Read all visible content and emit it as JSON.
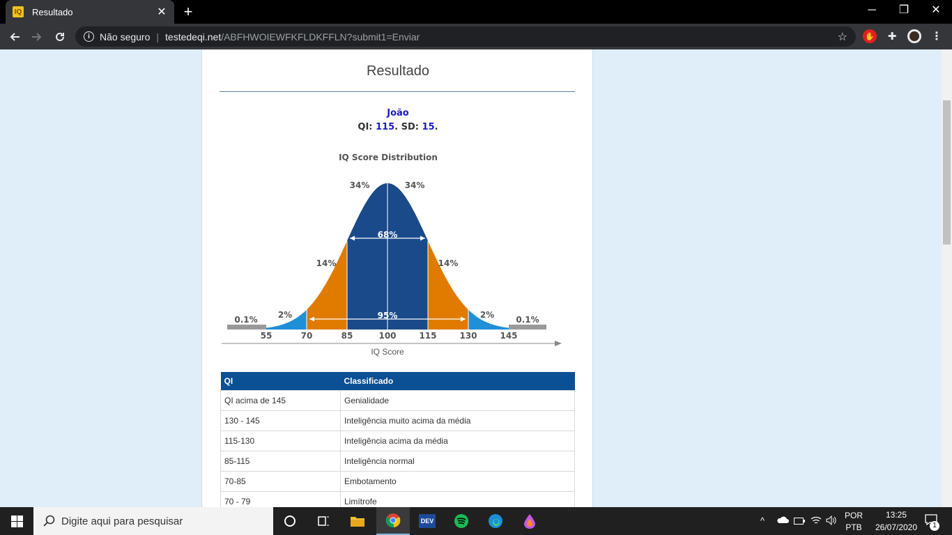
{
  "browser": {
    "tab_title": "Resultado",
    "tab_icon": "iq-favicon",
    "new_tab": "+",
    "window_controls": {
      "minimize": "─",
      "maximize": "❐",
      "close": "✕"
    },
    "security_label": "Não seguro",
    "url_host": "testedeqi.net",
    "url_path": "/ABFHWOIEWFKFLDKFFLN?submit1=Enviar"
  },
  "page": {
    "heading": "Resultado",
    "name": "João",
    "qi_label": "QI:",
    "qi_value": "115",
    "sd_label": "SD:",
    "sd_value": "15",
    "period": "."
  },
  "chart_data": {
    "type": "area",
    "title": "IQ Score Distribution",
    "xlabel": "IQ Score",
    "ylabel": "",
    "x_ticks": [
      "55",
      "70",
      "85",
      "100",
      "115",
      "130",
      "145"
    ],
    "bands": [
      {
        "range": "<55",
        "percent_label": "0.1%",
        "color": "#999999"
      },
      {
        "range": "55-70",
        "percent_label": "2%",
        "color": "#1f8fd8"
      },
      {
        "range": "70-85",
        "percent_label": "14%",
        "color": "#e07b00"
      },
      {
        "range": "85-100",
        "percent_label": "34%",
        "color": "#1a4a8a"
      },
      {
        "range": "100-115",
        "percent_label": "34%",
        "color": "#1a4a8a"
      },
      {
        "range": "115-130",
        "percent_label": "14%",
        "color": "#e07b00"
      },
      {
        "range": "130-145",
        "percent_label": "2%",
        "color": "#1f8fd8"
      },
      {
        "range": ">145",
        "percent_label": "0.1%",
        "color": "#999999"
      }
    ],
    "intervals": [
      {
        "label": "68%",
        "from": 85,
        "to": 115
      },
      {
        "label": "95%",
        "from": 70,
        "to": 130
      }
    ],
    "mean": 100,
    "sd": 15
  },
  "table": {
    "headers": [
      "QI",
      "Classificado"
    ],
    "rows": [
      [
        "QI acima de 145",
        "Genialidade"
      ],
      [
        "130 - 145",
        "Inteligência muito acima da média"
      ],
      [
        "115-130",
        "Inteligência acima da média"
      ],
      [
        "85-115",
        "Inteligência normal"
      ],
      [
        "70-85",
        "Embotamento"
      ],
      [
        "70 - 79",
        "Limítrofe"
      ]
    ]
  },
  "taskbar": {
    "search_placeholder": "Digite aqui para pesquisar",
    "lang_top": "POR",
    "lang_bottom": "PTB",
    "time": "13:25",
    "date": "26/07/2020",
    "notifications": "1",
    "apps": [
      "cortana-icon",
      "task-view-icon",
      "file-explorer-icon",
      "chrome-icon",
      "dev-icon",
      "spotify-icon",
      "edge-icon",
      "paint-icon"
    ]
  },
  "colors": {
    "header_blue": "#0b4f94",
    "name_blue": "#1a1ac8"
  }
}
